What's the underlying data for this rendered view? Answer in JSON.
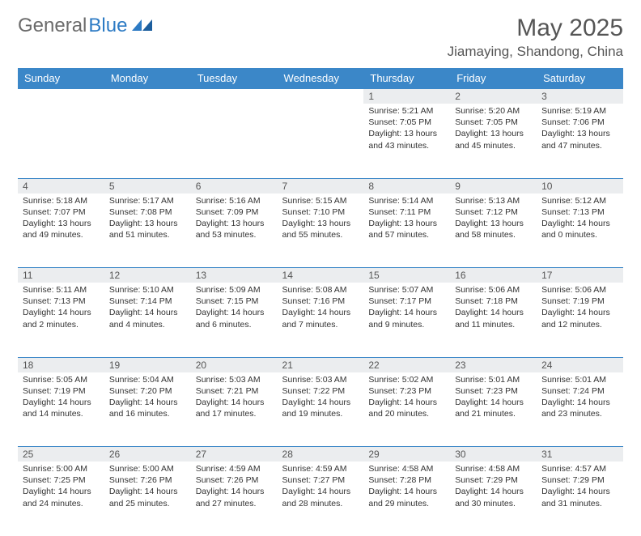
{
  "brand": {
    "part1": "General",
    "part2": "Blue"
  },
  "title": "May 2025",
  "location": "Jiamaying, Shandong, China",
  "colors": {
    "header_bg": "#3b87c8",
    "header_text": "#ffffff",
    "daynum_bg": "#ebedef",
    "rule": "#3b87c8",
    "brand_gray": "#6b6b6b",
    "brand_blue": "#2d7bc4"
  },
  "weekdays": [
    "Sunday",
    "Monday",
    "Tuesday",
    "Wednesday",
    "Thursday",
    "Friday",
    "Saturday"
  ],
  "weeks": [
    [
      null,
      null,
      null,
      null,
      {
        "n": "1",
        "sr": "5:21 AM",
        "ss": "7:05 PM",
        "dl": "13 hours and 43 minutes."
      },
      {
        "n": "2",
        "sr": "5:20 AM",
        "ss": "7:05 PM",
        "dl": "13 hours and 45 minutes."
      },
      {
        "n": "3",
        "sr": "5:19 AM",
        "ss": "7:06 PM",
        "dl": "13 hours and 47 minutes."
      }
    ],
    [
      {
        "n": "4",
        "sr": "5:18 AM",
        "ss": "7:07 PM",
        "dl": "13 hours and 49 minutes."
      },
      {
        "n": "5",
        "sr": "5:17 AM",
        "ss": "7:08 PM",
        "dl": "13 hours and 51 minutes."
      },
      {
        "n": "6",
        "sr": "5:16 AM",
        "ss": "7:09 PM",
        "dl": "13 hours and 53 minutes."
      },
      {
        "n": "7",
        "sr": "5:15 AM",
        "ss": "7:10 PM",
        "dl": "13 hours and 55 minutes."
      },
      {
        "n": "8",
        "sr": "5:14 AM",
        "ss": "7:11 PM",
        "dl": "13 hours and 57 minutes."
      },
      {
        "n": "9",
        "sr": "5:13 AM",
        "ss": "7:12 PM",
        "dl": "13 hours and 58 minutes."
      },
      {
        "n": "10",
        "sr": "5:12 AM",
        "ss": "7:13 PM",
        "dl": "14 hours and 0 minutes."
      }
    ],
    [
      {
        "n": "11",
        "sr": "5:11 AM",
        "ss": "7:13 PM",
        "dl": "14 hours and 2 minutes."
      },
      {
        "n": "12",
        "sr": "5:10 AM",
        "ss": "7:14 PM",
        "dl": "14 hours and 4 minutes."
      },
      {
        "n": "13",
        "sr": "5:09 AM",
        "ss": "7:15 PM",
        "dl": "14 hours and 6 minutes."
      },
      {
        "n": "14",
        "sr": "5:08 AM",
        "ss": "7:16 PM",
        "dl": "14 hours and 7 minutes."
      },
      {
        "n": "15",
        "sr": "5:07 AM",
        "ss": "7:17 PM",
        "dl": "14 hours and 9 minutes."
      },
      {
        "n": "16",
        "sr": "5:06 AM",
        "ss": "7:18 PM",
        "dl": "14 hours and 11 minutes."
      },
      {
        "n": "17",
        "sr": "5:06 AM",
        "ss": "7:19 PM",
        "dl": "14 hours and 12 minutes."
      }
    ],
    [
      {
        "n": "18",
        "sr": "5:05 AM",
        "ss": "7:19 PM",
        "dl": "14 hours and 14 minutes."
      },
      {
        "n": "19",
        "sr": "5:04 AM",
        "ss": "7:20 PM",
        "dl": "14 hours and 16 minutes."
      },
      {
        "n": "20",
        "sr": "5:03 AM",
        "ss": "7:21 PM",
        "dl": "14 hours and 17 minutes."
      },
      {
        "n": "21",
        "sr": "5:03 AM",
        "ss": "7:22 PM",
        "dl": "14 hours and 19 minutes."
      },
      {
        "n": "22",
        "sr": "5:02 AM",
        "ss": "7:23 PM",
        "dl": "14 hours and 20 minutes."
      },
      {
        "n": "23",
        "sr": "5:01 AM",
        "ss": "7:23 PM",
        "dl": "14 hours and 21 minutes."
      },
      {
        "n": "24",
        "sr": "5:01 AM",
        "ss": "7:24 PM",
        "dl": "14 hours and 23 minutes."
      }
    ],
    [
      {
        "n": "25",
        "sr": "5:00 AM",
        "ss": "7:25 PM",
        "dl": "14 hours and 24 minutes."
      },
      {
        "n": "26",
        "sr": "5:00 AM",
        "ss": "7:26 PM",
        "dl": "14 hours and 25 minutes."
      },
      {
        "n": "27",
        "sr": "4:59 AM",
        "ss": "7:26 PM",
        "dl": "14 hours and 27 minutes."
      },
      {
        "n": "28",
        "sr": "4:59 AM",
        "ss": "7:27 PM",
        "dl": "14 hours and 28 minutes."
      },
      {
        "n": "29",
        "sr": "4:58 AM",
        "ss": "7:28 PM",
        "dl": "14 hours and 29 minutes."
      },
      {
        "n": "30",
        "sr": "4:58 AM",
        "ss": "7:29 PM",
        "dl": "14 hours and 30 minutes."
      },
      {
        "n": "31",
        "sr": "4:57 AM",
        "ss": "7:29 PM",
        "dl": "14 hours and 31 minutes."
      }
    ]
  ],
  "labels": {
    "sunrise": "Sunrise:",
    "sunset": "Sunset:",
    "daylight": "Daylight:"
  }
}
